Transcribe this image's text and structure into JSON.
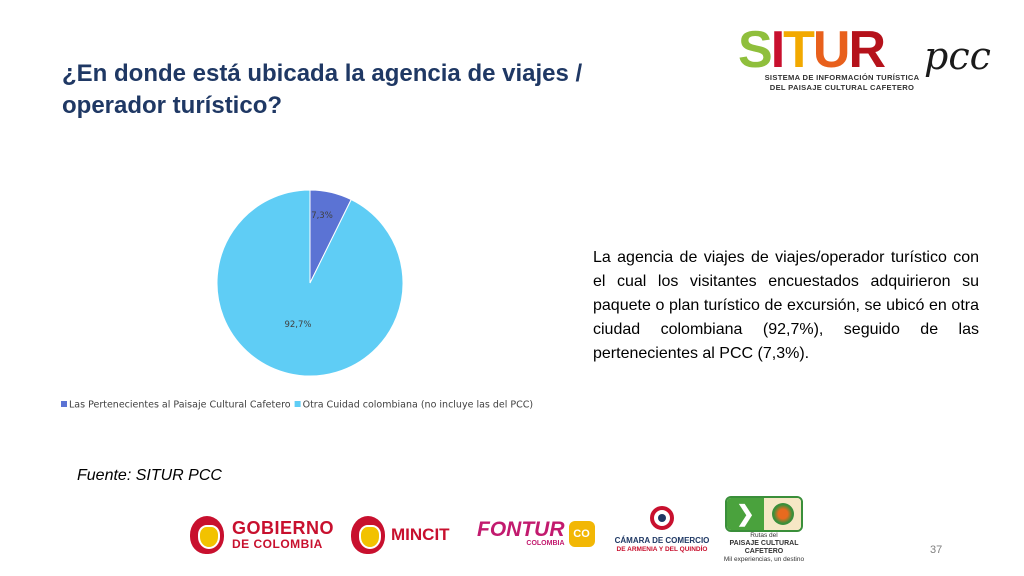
{
  "slide": {
    "title": "¿En donde está ubicada la agencia de viajes / operador turístico?",
    "description": "La agencia de viajes de viajes/operador turístico con el cual los visitantes encuestados adquirieron su paquete o plan turístico de excursión, se ubicó en otra ciudad colombiana (92,7%), seguido de las pertenecientes al PCC (7,3%).",
    "source": "Fuente: SITUR PCC",
    "page_number": "37"
  },
  "logo": {
    "letters": [
      "S",
      "I",
      "T",
      "U",
      "R"
    ],
    "letter_colors": [
      "#8fbf3c",
      "#c8102e",
      "#f2a900",
      "#e8601c",
      "#b5121b"
    ],
    "suffix": "pcc",
    "line1": "SISTEMA DE INFORMACIÓN TURÍSTICA",
    "line2": "DEL PAISAJE CULTURAL CAFETERO"
  },
  "footer": {
    "gobierno_line1": "GOBIERNO",
    "gobierno_line2": "DE COLOMBIA",
    "mincit": "MINCIT",
    "fontur": "FONTUR",
    "fontur_sub": "COLOMBIA",
    "co_badge": "CO",
    "camara_line1": "CÁMARA DE COMERCIO",
    "camara_line2": "DE ARMENIA Y DEL QUINDÍO",
    "rutas_line1": "Rutas del",
    "rutas_line2": "PAISAJE CULTURAL CAFETERO",
    "rutas_line3": "Mil experiencias, un destino"
  },
  "chart_data": {
    "type": "pie",
    "title": "",
    "slices": [
      {
        "name": "Las Pertenecientes al Paisaje Cultural Cafetero",
        "value": 7.3,
        "label": "7,3%",
        "color": "#5b73d4"
      },
      {
        "name": "Otra Cuidad colombiana (no incluye las del PCC)",
        "value": 92.7,
        "label": "92,7%",
        "color": "#5fcdf5"
      }
    ],
    "start_angle_deg": 0,
    "direction": "clockwise",
    "legend_position": "bottom"
  }
}
